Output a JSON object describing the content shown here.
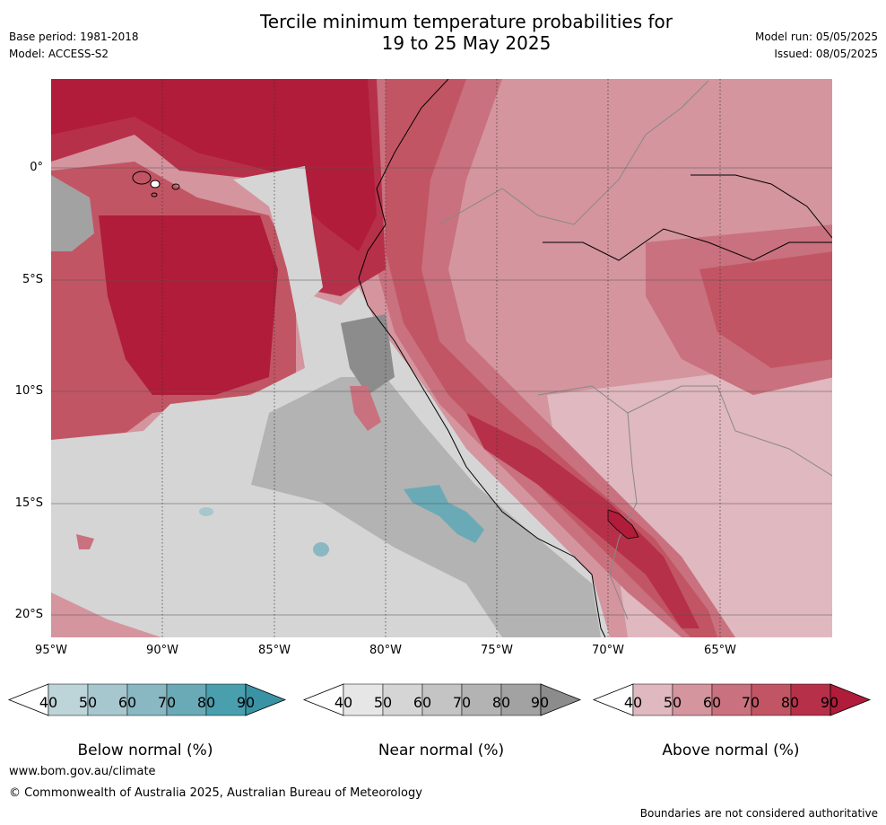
{
  "title": {
    "line1": "Tercile minimum temperature probabilities for",
    "line2": "19 to 25 May 2025"
  },
  "meta": {
    "base_period": "Base period: 1981-2018",
    "model": "Model: ACCESS-S2",
    "model_run": "Model run: 05/05/2025",
    "issued": "Issued: 08/05/2025"
  },
  "axes": {
    "lat_labels": [
      "0°",
      "5°S",
      "10°S",
      "15°S",
      "20°S"
    ],
    "lon_labels": [
      "95°W",
      "90°W",
      "85°W",
      "80°W",
      "75°W",
      "70°W",
      "65°W"
    ]
  },
  "legend": {
    "ticks": [
      "40",
      "50",
      "60",
      "70",
      "80",
      "90"
    ],
    "below": {
      "title": "Below normal (%)",
      "colors": [
        "#bdd4d9",
        "#a6c7cd",
        "#8ab8c2",
        "#6aaab6",
        "#4a9fae",
        "#3a93a4"
      ]
    },
    "near": {
      "title": "Near normal (%)",
      "colors": [
        "#e6e6e6",
        "#d5d5d5",
        "#c4c4c4",
        "#b3b3b3",
        "#a2a2a2",
        "#8c8c8c"
      ]
    },
    "above": {
      "title": "Above normal (%)",
      "colors": [
        "#e0b8bf",
        "#d4959e",
        "#c9717e",
        "#c25564",
        "#b7304a",
        "#b01c3a"
      ]
    }
  },
  "footer": {
    "url": "www.bom.gov.au/climate",
    "copyright": "© Commonwealth of Australia 2025, Australian Bureau of Meteorology",
    "note": "Boundaries are not considered authoritative"
  }
}
